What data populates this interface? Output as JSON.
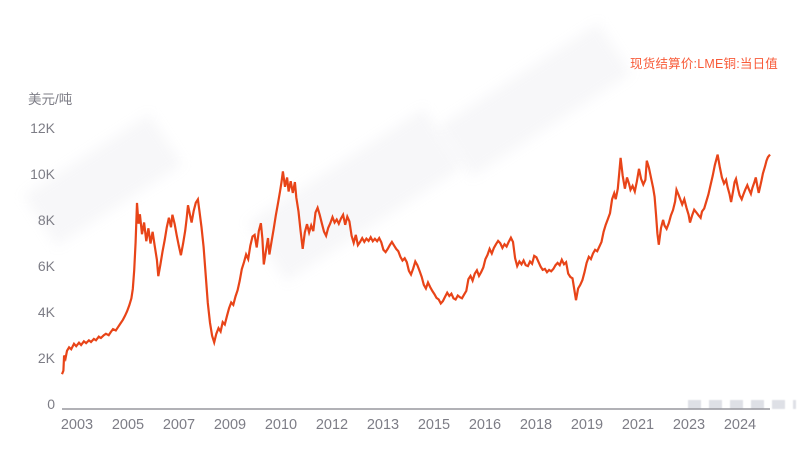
{
  "page": {
    "background": "#ffffff"
  },
  "colors": {
    "line": "#e84418",
    "legend_text": "#f85a38",
    "tick_text": "#7d7d86",
    "axis_line": "#97979e"
  },
  "chart_data": {
    "type": "line",
    "title": "",
    "legend": "现货结算价:LME铜:当日值",
    "ylabel": "美元/吨",
    "ylim": [
      0,
      12000
    ],
    "y_tick_labels": [
      "12K",
      "10K",
      "8K",
      "6K",
      "4K",
      "2K",
      "0"
    ],
    "y_tick_values": [
      12000,
      10000,
      8000,
      6000,
      4000,
      2000,
      0
    ],
    "x_tick_labels": [
      "2003",
      "2005",
      "2007",
      "2009",
      "2010",
      "2012",
      "2013",
      "2015",
      "2016",
      "2018",
      "2019",
      "2021",
      "2023",
      "2024"
    ],
    "x_range": [
      "2003",
      "2024"
    ],
    "grid": false,
    "legend_position": "top-right",
    "points": [
      [
        0,
        1450
      ],
      [
        0.002,
        1600
      ],
      [
        0.003,
        2250
      ],
      [
        0.005,
        2120
      ],
      [
        0.007,
        2450
      ],
      [
        0.01,
        2600
      ],
      [
        0.013,
        2520
      ],
      [
        0.017,
        2750
      ],
      [
        0.02,
        2650
      ],
      [
        0.024,
        2800
      ],
      [
        0.027,
        2700
      ],
      [
        0.031,
        2860
      ],
      [
        0.034,
        2780
      ],
      [
        0.038,
        2900
      ],
      [
        0.041,
        2830
      ],
      [
        0.045,
        2960
      ],
      [
        0.048,
        2900
      ],
      [
        0.052,
        3060
      ],
      [
        0.055,
        3000
      ],
      [
        0.059,
        3120
      ],
      [
        0.062,
        3180
      ],
      [
        0.066,
        3120
      ],
      [
        0.069,
        3260
      ],
      [
        0.072,
        3380
      ],
      [
        0.076,
        3320
      ],
      [
        0.079,
        3460
      ],
      [
        0.082,
        3600
      ],
      [
        0.086,
        3780
      ],
      [
        0.089,
        3950
      ],
      [
        0.092,
        4150
      ],
      [
        0.095,
        4400
      ],
      [
        0.098,
        4700
      ],
      [
        0.1,
        5100
      ],
      [
        0.102,
        5900
      ],
      [
        0.104,
        7100
      ],
      [
        0.106,
        8790
      ],
      [
        0.108,
        7900
      ],
      [
        0.11,
        8300
      ],
      [
        0.113,
        7450
      ],
      [
        0.116,
        7950
      ],
      [
        0.119,
        7150
      ],
      [
        0.122,
        7700
      ],
      [
        0.125,
        7050
      ],
      [
        0.128,
        7550
      ],
      [
        0.131,
        6950
      ],
      [
        0.134,
        6350
      ],
      [
        0.136,
        5650
      ],
      [
        0.139,
        6150
      ],
      [
        0.142,
        6700
      ],
      [
        0.145,
        7200
      ],
      [
        0.148,
        7750
      ],
      [
        0.151,
        8150
      ],
      [
        0.154,
        7750
      ],
      [
        0.156,
        8280
      ],
      [
        0.159,
        7900
      ],
      [
        0.162,
        7400
      ],
      [
        0.165,
        6950
      ],
      [
        0.168,
        6550
      ],
      [
        0.171,
        7050
      ],
      [
        0.174,
        7600
      ],
      [
        0.176,
        8100
      ],
      [
        0.178,
        8690
      ],
      [
        0.181,
        8250
      ],
      [
        0.183,
        7950
      ],
      [
        0.186,
        8450
      ],
      [
        0.189,
        8800
      ],
      [
        0.192,
        8940
      ],
      [
        0.194,
        8450
      ],
      [
        0.197,
        7750
      ],
      [
        0.2,
        6900
      ],
      [
        0.203,
        5700
      ],
      [
        0.206,
        4500
      ],
      [
        0.209,
        3650
      ],
      [
        0.212,
        3100
      ],
      [
        0.215,
        2810
      ],
      [
        0.218,
        3180
      ],
      [
        0.221,
        3420
      ],
      [
        0.224,
        3280
      ],
      [
        0.227,
        3680
      ],
      [
        0.23,
        3580
      ],
      [
        0.233,
        3950
      ],
      [
        0.236,
        4280
      ],
      [
        0.239,
        4520
      ],
      [
        0.242,
        4420
      ],
      [
        0.245,
        4780
      ],
      [
        0.248,
        5050
      ],
      [
        0.251,
        5450
      ],
      [
        0.254,
        5950
      ],
      [
        0.257,
        6250
      ],
      [
        0.26,
        6580
      ],
      [
        0.263,
        6380
      ],
      [
        0.266,
        6950
      ],
      [
        0.269,
        7350
      ],
      [
        0.272,
        7420
      ],
      [
        0.275,
        6880
      ],
      [
        0.278,
        7580
      ],
      [
        0.281,
        7920
      ],
      [
        0.283,
        7250
      ],
      [
        0.285,
        6150
      ],
      [
        0.288,
        6720
      ],
      [
        0.291,
        7280
      ],
      [
        0.293,
        6580
      ],
      [
        0.296,
        7150
      ],
      [
        0.299,
        7680
      ],
      [
        0.302,
        8250
      ],
      [
        0.305,
        8750
      ],
      [
        0.308,
        9300
      ],
      [
        0.31,
        9680
      ],
      [
        0.312,
        10140
      ],
      [
        0.315,
        9480
      ],
      [
        0.318,
        9880
      ],
      [
        0.32,
        9280
      ],
      [
        0.323,
        9720
      ],
      [
        0.326,
        9220
      ],
      [
        0.329,
        9680
      ],
      [
        0.331,
        9020
      ],
      [
        0.334,
        8420
      ],
      [
        0.337,
        7580
      ],
      [
        0.34,
        6820
      ],
      [
        0.343,
        7520
      ],
      [
        0.346,
        7880
      ],
      [
        0.349,
        7520
      ],
      [
        0.352,
        7820
      ],
      [
        0.355,
        7580
      ],
      [
        0.358,
        8380
      ],
      [
        0.361,
        8580
      ],
      [
        0.364,
        8280
      ],
      [
        0.367,
        7920
      ],
      [
        0.37,
        7560
      ],
      [
        0.373,
        7380
      ],
      [
        0.376,
        7720
      ],
      [
        0.379,
        7920
      ],
      [
        0.382,
        8180
      ],
      [
        0.385,
        7950
      ],
      [
        0.388,
        8080
      ],
      [
        0.391,
        7900
      ],
      [
        0.394,
        8120
      ],
      [
        0.397,
        8280
      ],
      [
        0.4,
        7850
      ],
      [
        0.403,
        8200
      ],
      [
        0.406,
        8000
      ],
      [
        0.409,
        7380
      ],
      [
        0.412,
        7080
      ],
      [
        0.415,
        7420
      ],
      [
        0.418,
        6980
      ],
      [
        0.421,
        7120
      ],
      [
        0.424,
        7280
      ],
      [
        0.427,
        7120
      ],
      [
        0.43,
        7260
      ],
      [
        0.433,
        7160
      ],
      [
        0.436,
        7320
      ],
      [
        0.439,
        7150
      ],
      [
        0.442,
        7250
      ],
      [
        0.445,
        7150
      ],
      [
        0.448,
        7280
      ],
      [
        0.451,
        7100
      ],
      [
        0.454,
        6780
      ],
      [
        0.457,
        6680
      ],
      [
        0.46,
        6820
      ],
      [
        0.463,
        6980
      ],
      [
        0.466,
        7120
      ],
      [
        0.469,
        6960
      ],
      [
        0.472,
        6820
      ],
      [
        0.475,
        6720
      ],
      [
        0.478,
        6480
      ],
      [
        0.481,
        6320
      ],
      [
        0.484,
        6420
      ],
      [
        0.487,
        6250
      ],
      [
        0.49,
        5880
      ],
      [
        0.493,
        5720
      ],
      [
        0.496,
        5980
      ],
      [
        0.499,
        6280
      ],
      [
        0.502,
        6120
      ],
      [
        0.505,
        5880
      ],
      [
        0.508,
        5620
      ],
      [
        0.511,
        5280
      ],
      [
        0.514,
        5120
      ],
      [
        0.517,
        5380
      ],
      [
        0.52,
        5180
      ],
      [
        0.523,
        5020
      ],
      [
        0.526,
        4880
      ],
      [
        0.529,
        4720
      ],
      [
        0.532,
        4650
      ],
      [
        0.535,
        4480
      ],
      [
        0.538,
        4580
      ],
      [
        0.541,
        4760
      ],
      [
        0.544,
        4940
      ],
      [
        0.547,
        4800
      ],
      [
        0.55,
        4900
      ],
      [
        0.553,
        4700
      ],
      [
        0.556,
        4650
      ],
      [
        0.559,
        4820
      ],
      [
        0.562,
        4750
      ],
      [
        0.565,
        4700
      ],
      [
        0.568,
        4860
      ],
      [
        0.571,
        5020
      ],
      [
        0.574,
        5520
      ],
      [
        0.577,
        5660
      ],
      [
        0.58,
        5460
      ],
      [
        0.583,
        5760
      ],
      [
        0.586,
        5900
      ],
      [
        0.589,
        5660
      ],
      [
        0.592,
        5820
      ],
      [
        0.595,
        6020
      ],
      [
        0.598,
        6380
      ],
      [
        0.601,
        6560
      ],
      [
        0.604,
        6820
      ],
      [
        0.607,
        6620
      ],
      [
        0.61,
        6860
      ],
      [
        0.613,
        7020
      ],
      [
        0.616,
        7160
      ],
      [
        0.619,
        7060
      ],
      [
        0.622,
        6860
      ],
      [
        0.625,
        7020
      ],
      [
        0.628,
        6920
      ],
      [
        0.631,
        7120
      ],
      [
        0.634,
        7300
      ],
      [
        0.637,
        7120
      ],
      [
        0.64,
        6420
      ],
      [
        0.643,
        6080
      ],
      [
        0.646,
        6280
      ],
      [
        0.649,
        6160
      ],
      [
        0.652,
        6320
      ],
      [
        0.655,
        6120
      ],
      [
        0.658,
        6080
      ],
      [
        0.661,
        6280
      ],
      [
        0.664,
        6180
      ],
      [
        0.667,
        6520
      ],
      [
        0.67,
        6460
      ],
      [
        0.673,
        6260
      ],
      [
        0.676,
        6060
      ],
      [
        0.679,
        5920
      ],
      [
        0.682,
        5960
      ],
      [
        0.685,
        5820
      ],
      [
        0.688,
        5920
      ],
      [
        0.691,
        5860
      ],
      [
        0.694,
        5960
      ],
      [
        0.697,
        6120
      ],
      [
        0.7,
        6220
      ],
      [
        0.703,
        6120
      ],
      [
        0.706,
        6350
      ],
      [
        0.709,
        6160
      ],
      [
        0.712,
        6250
      ],
      [
        0.715,
        5760
      ],
      [
        0.718,
        5620
      ],
      [
        0.721,
        5560
      ],
      [
        0.726,
        4620
      ],
      [
        0.729,
        5120
      ],
      [
        0.732,
        5280
      ],
      [
        0.735,
        5480
      ],
      [
        0.738,
        5820
      ],
      [
        0.741,
        6220
      ],
      [
        0.744,
        6480
      ],
      [
        0.747,
        6380
      ],
      [
        0.75,
        6620
      ],
      [
        0.753,
        6780
      ],
      [
        0.756,
        6720
      ],
      [
        0.759,
        6920
      ],
      [
        0.762,
        7120
      ],
      [
        0.765,
        7550
      ],
      [
        0.768,
        7850
      ],
      [
        0.771,
        8100
      ],
      [
        0.774,
        8350
      ],
      [
        0.777,
        8950
      ],
      [
        0.78,
        9200
      ],
      [
        0.782,
        8950
      ],
      [
        0.785,
        9400
      ],
      [
        0.787,
        10050
      ],
      [
        0.789,
        10720
      ],
      [
        0.792,
        9950
      ],
      [
        0.795,
        9400
      ],
      [
        0.798,
        9880
      ],
      [
        0.801,
        9600
      ],
      [
        0.803,
        9350
      ],
      [
        0.806,
        9520
      ],
      [
        0.809,
        9280
      ],
      [
        0.812,
        9720
      ],
      [
        0.815,
        10250
      ],
      [
        0.818,
        9820
      ],
      [
        0.821,
        9580
      ],
      [
        0.824,
        9780
      ],
      [
        0.826,
        10600
      ],
      [
        0.829,
        10300
      ],
      [
        0.832,
        9850
      ],
      [
        0.835,
        9420
      ],
      [
        0.837,
        9050
      ],
      [
        0.839,
        8300
      ],
      [
        0.841,
        7480
      ],
      [
        0.843,
        7000
      ],
      [
        0.846,
        7720
      ],
      [
        0.849,
        8060
      ],
      [
        0.851,
        7820
      ],
      [
        0.854,
        7680
      ],
      [
        0.857,
        7920
      ],
      [
        0.86,
        8250
      ],
      [
        0.863,
        8480
      ],
      [
        0.866,
        8850
      ],
      [
        0.868,
        9350
      ],
      [
        0.871,
        9120
      ],
      [
        0.874,
        8880
      ],
      [
        0.876,
        8720
      ],
      [
        0.879,
        8950
      ],
      [
        0.882,
        8580
      ],
      [
        0.885,
        8280
      ],
      [
        0.887,
        7950
      ],
      [
        0.89,
        8250
      ],
      [
        0.893,
        8500
      ],
      [
        0.896,
        8380
      ],
      [
        0.899,
        8260
      ],
      [
        0.902,
        8150
      ],
      [
        0.904,
        8420
      ],
      [
        0.907,
        8550
      ],
      [
        0.91,
        8850
      ],
      [
        0.913,
        9150
      ],
      [
        0.916,
        9550
      ],
      [
        0.919,
        9950
      ],
      [
        0.922,
        10400
      ],
      [
        0.926,
        10860
      ],
      [
        0.929,
        10350
      ],
      [
        0.932,
        9880
      ],
      [
        0.935,
        9620
      ],
      [
        0.938,
        9780
      ],
      [
        0.94,
        9480
      ],
      [
        0.943,
        9150
      ],
      [
        0.945,
        8830
      ],
      [
        0.948,
        9320
      ],
      [
        0.95,
        9680
      ],
      [
        0.952,
        9820
      ],
      [
        0.955,
        9380
      ],
      [
        0.957,
        9120
      ],
      [
        0.96,
        8950
      ],
      [
        0.962,
        9120
      ],
      [
        0.965,
        9350
      ],
      [
        0.968,
        9550
      ],
      [
        0.97,
        9380
      ],
      [
        0.973,
        9180
      ],
      [
        0.975,
        9420
      ],
      [
        0.978,
        9680
      ],
      [
        0.98,
        9880
      ],
      [
        0.982,
        9520
      ],
      [
        0.984,
        9220
      ],
      [
        0.986,
        9480
      ],
      [
        0.988,
        9750
      ],
      [
        0.99,
        10050
      ],
      [
        0.993,
        10350
      ],
      [
        0.995,
        10600
      ],
      [
        0.997,
        10750
      ],
      [
        1.0,
        10860
      ]
    ]
  }
}
